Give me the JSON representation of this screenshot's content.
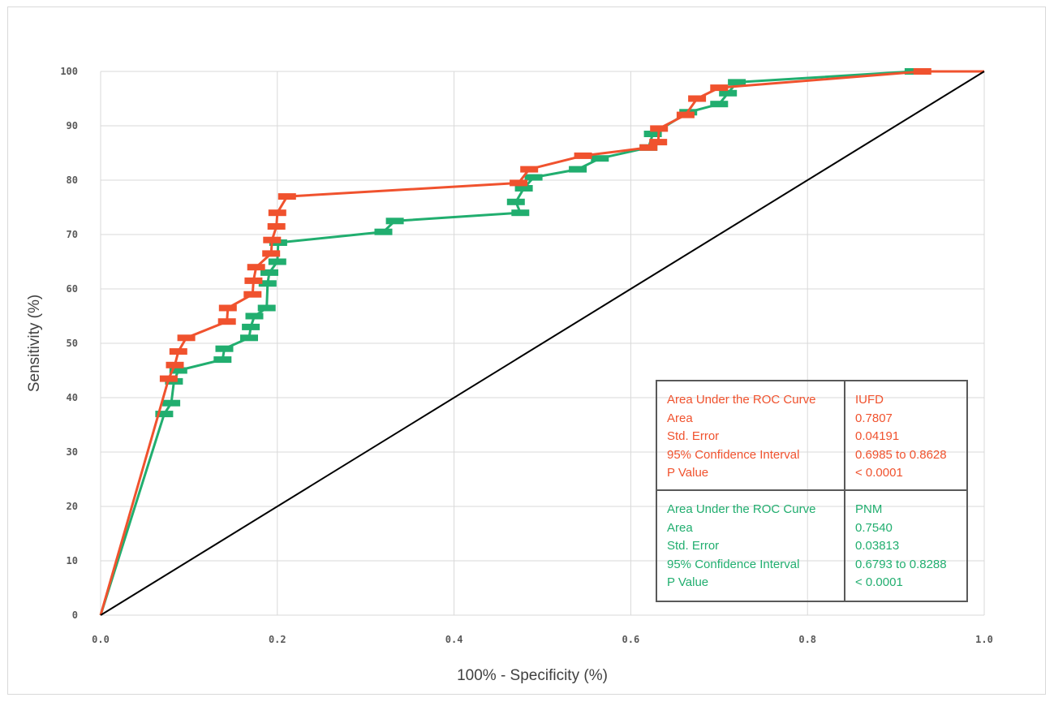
{
  "chart_data": {
    "type": "line",
    "title": "",
    "xlabel": "100% - Specificity (%)",
    "ylabel": "Sensitivity (%)",
    "xlim": [
      0,
      1
    ],
    "ylim": [
      0,
      100
    ],
    "x_ticks": [
      "0.0",
      "0.2",
      "0.4",
      "0.6",
      "0.8",
      "1.0"
    ],
    "y_ticks": [
      "0",
      "10",
      "20",
      "30",
      "40",
      "50",
      "60",
      "70",
      "80",
      "90",
      "100"
    ],
    "grid": true,
    "series": [
      {
        "name": "IUFD",
        "color": "#f0522e",
        "points": [
          [
            0,
            0
          ],
          [
            0.077,
            43.5
          ],
          [
            0.084,
            46
          ],
          [
            0.088,
            48.5
          ],
          [
            0.097,
            51
          ],
          [
            0.143,
            54
          ],
          [
            0.144,
            56.5
          ],
          [
            0.172,
            59
          ],
          [
            0.173,
            61.5
          ],
          [
            0.176,
            64
          ],
          [
            0.193,
            66.5
          ],
          [
            0.194,
            69
          ],
          [
            0.199,
            71.5
          ],
          [
            0.2,
            74
          ],
          [
            0.211,
            77
          ],
          [
            0.473,
            79.5
          ],
          [
            0.485,
            82
          ],
          [
            0.546,
            84.5
          ],
          [
            0.62,
            86
          ],
          [
            0.631,
            87
          ],
          [
            0.632,
            89.5
          ],
          [
            0.662,
            92
          ],
          [
            0.675,
            95
          ],
          [
            0.7,
            97
          ],
          [
            0.93,
            100
          ],
          [
            1.0,
            100
          ]
        ]
      },
      {
        "name": "PNM",
        "color": "#21ae6f",
        "points": [
          [
            0,
            0
          ],
          [
            0.072,
            37
          ],
          [
            0.08,
            39
          ],
          [
            0.083,
            43
          ],
          [
            0.088,
            45
          ],
          [
            0.138,
            47
          ],
          [
            0.14,
            49
          ],
          [
            0.168,
            51
          ],
          [
            0.17,
            53
          ],
          [
            0.174,
            55
          ],
          [
            0.188,
            56.5
          ],
          [
            0.189,
            61
          ],
          [
            0.191,
            63
          ],
          [
            0.2,
            65
          ],
          [
            0.201,
            68.5
          ],
          [
            0.32,
            70.5
          ],
          [
            0.333,
            72.5
          ],
          [
            0.475,
            74
          ],
          [
            0.47,
            76
          ],
          [
            0.479,
            78.5
          ],
          [
            0.49,
            80.5
          ],
          [
            0.54,
            82
          ],
          [
            0.565,
            84
          ],
          [
            0.62,
            86
          ],
          [
            0.625,
            88.5
          ],
          [
            0.665,
            92.5
          ],
          [
            0.7,
            94
          ],
          [
            0.71,
            96
          ],
          [
            0.72,
            98
          ],
          [
            0.92,
            100
          ],
          [
            1.0,
            100
          ]
        ]
      },
      {
        "name": "",
        "color": "#000000",
        "points": [
          [
            0,
            0
          ],
          [
            1,
            100
          ]
        ]
      }
    ]
  },
  "auc_table": {
    "iufd": {
      "color": "#f0522e",
      "labels": [
        "Area Under the ROC Curve",
        "Area",
        "Std. Error",
        "95% Confidence Interval",
        "P Value"
      ],
      "values": [
        "IUFD",
        "0.7807",
        "0.04191",
        "0.6985 to 0.8628",
        "< 0.0001"
      ]
    },
    "pnm": {
      "color": "#21ae6f",
      "labels": [
        "Area Under the ROC Curve",
        "Area",
        "Std. Error",
        "95% Confidence Interval",
        "P Value"
      ],
      "values": [
        "PNM",
        "0.7540",
        "0.03813",
        "0.6793 to 0.8288",
        "< 0.0001"
      ]
    }
  }
}
